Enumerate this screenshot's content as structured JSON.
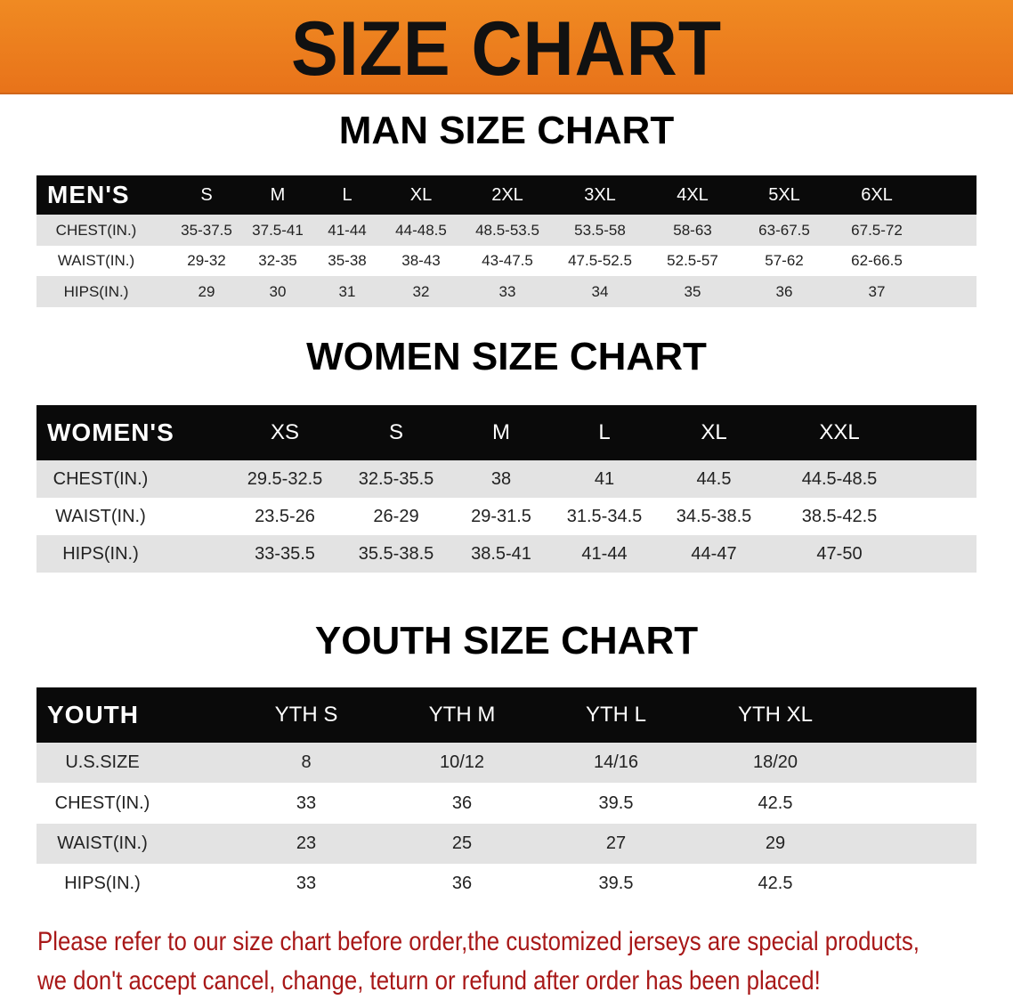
{
  "banner": {
    "title": "SIZE CHART"
  },
  "men": {
    "title": "MAN SIZE CHART",
    "header": [
      "MEN'S",
      "S",
      "M",
      "L",
      "XL",
      "2XL",
      "3XL",
      "4XL",
      "5XL",
      "6XL"
    ],
    "rows": [
      [
        "CHEST(IN.)",
        "35-37.5",
        "37.5-41",
        "41-44",
        "44-48.5",
        "48.5-53.5",
        "53.5-58",
        "58-63",
        "63-67.5",
        "67.5-72"
      ],
      [
        "WAIST(IN.)",
        "29-32",
        "32-35",
        "35-38",
        "38-43",
        "43-47.5",
        "47.5-52.5",
        "52.5-57",
        "57-62",
        "62-66.5"
      ],
      [
        "HIPS(IN.)",
        "29",
        "30",
        "31",
        "32",
        "33",
        "34",
        "35",
        "36",
        "37"
      ]
    ]
  },
  "women": {
    "title": "WOMEN SIZE CHART",
    "header": [
      "WOMEN'S",
      "XS",
      "S",
      "M",
      "L",
      "XL",
      "XXL"
    ],
    "rows": [
      [
        "CHEST(IN.)",
        "29.5-32.5",
        "32.5-35.5",
        "38",
        "41",
        "44.5",
        "44.5-48.5"
      ],
      [
        "WAIST(IN.)",
        "23.5-26",
        "26-29",
        "29-31.5",
        "31.5-34.5",
        "34.5-38.5",
        "38.5-42.5"
      ],
      [
        "HIPS(IN.)",
        "33-35.5",
        "35.5-38.5",
        "38.5-41",
        "41-44",
        "44-47",
        "47-50"
      ]
    ]
  },
  "youth": {
    "title": "YOUTH SIZE CHART",
    "header": [
      "YOUTH",
      "YTH S",
      "YTH M",
      "YTH L",
      "YTH XL"
    ],
    "rows": [
      [
        "U.S.SIZE",
        "8",
        "10/12",
        "14/16",
        "18/20"
      ],
      [
        "CHEST(IN.)",
        "33",
        "36",
        "39.5",
        "42.5"
      ],
      [
        "WAIST(IN.)",
        "23",
        "25",
        "27",
        "29"
      ],
      [
        "HIPS(IN.)",
        "33",
        "36",
        "39.5",
        "42.5"
      ]
    ]
  },
  "note": {
    "line1": "Please refer to our size chart before order,the customized jerseys are special products,",
    "line2": "we don't accept cancel, change, teturn or refund after order has been placed!"
  },
  "colors": {
    "banner": "#ec7d1e",
    "header_bg": "#0a0a0a",
    "row_gray": "#e3e3e3",
    "note": "#a81818"
  }
}
